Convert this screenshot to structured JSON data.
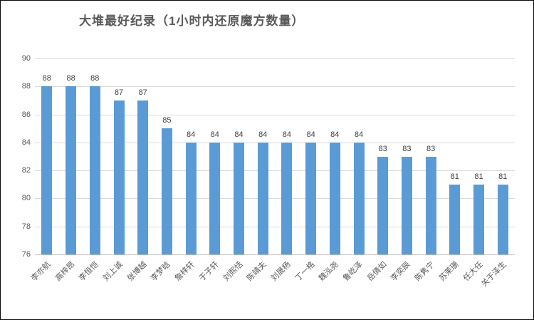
{
  "title": "大堆最好纪录（1小时内还原魔方数量）",
  "colors": {
    "bar": "#5B9BD5",
    "title_text": "#595959",
    "axis_text": "#595959",
    "data_label_text": "#404040",
    "gridline": "#D9D9D9",
    "axis_line": "#BFBFBF",
    "background": "#FFFFFF"
  },
  "chart_data": {
    "type": "bar",
    "title": "大堆最好纪录（1小时内还原魔方数量）",
    "categories": [
      "李亦航",
      "高梓昂",
      "李恒恺",
      "刘上诚",
      "张博越",
      "李梦晗",
      "詹梓轩",
      "于子轩",
      "刘熙恬",
      "陈靖夫",
      "刘晟杨",
      "丁一格",
      "魏泓尧",
      "鲁屹泽",
      "岳倩如",
      "李奕辰",
      "陈隽宁",
      "苏茉珊",
      "任大任",
      "关于泽生"
    ],
    "values": [
      88,
      88,
      88,
      87,
      87,
      85,
      84,
      84,
      84,
      84,
      84,
      84,
      84,
      84,
      83,
      83,
      83,
      81,
      81,
      81
    ],
    "xlabel": "",
    "ylabel": "",
    "ylim": [
      76,
      90
    ],
    "yticks": [
      76,
      78,
      80,
      82,
      84,
      86,
      88,
      90
    ],
    "grid": true,
    "data_labels": true,
    "legend": "none",
    "x_label_rotation_deg": 45,
    "bar_color": "#5B9BD5"
  }
}
